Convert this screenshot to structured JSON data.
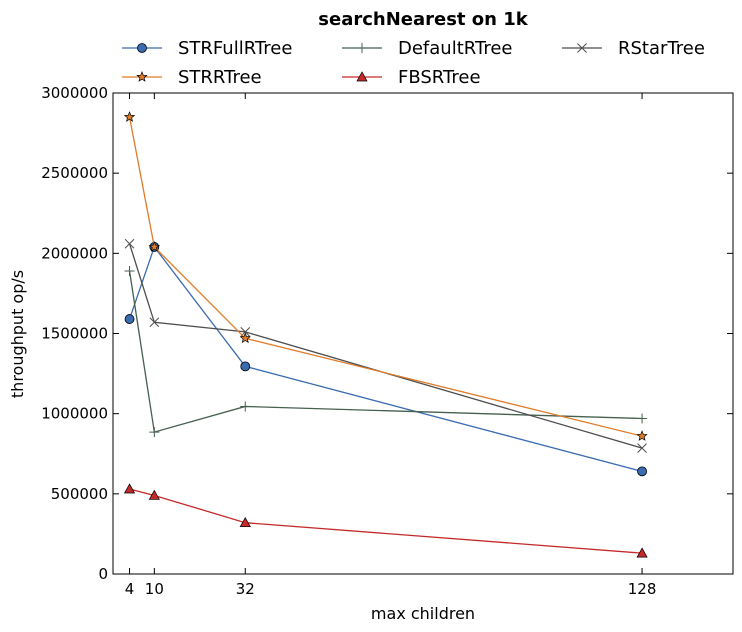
{
  "chart_data": {
    "type": "line",
    "title": "searchNearest on 1k",
    "xlabel": "max children",
    "ylabel": "throughput op/s",
    "xlim": [
      0,
      150
    ],
    "ylim": [
      0,
      3000000
    ],
    "xticks": [
      4,
      10,
      32,
      128
    ],
    "yticks": [
      0,
      500000,
      1000000,
      1500000,
      2000000,
      2500000,
      3000000
    ],
    "grid": false,
    "legend_position": "top",
    "x": [
      4,
      10,
      32,
      128
    ],
    "series": [
      {
        "name": "STRFullRTree",
        "values": [
          1590000,
          2040000,
          1295000,
          640000
        ],
        "color": "#3b6bb0",
        "marker": "circle"
      },
      {
        "name": "DefaultRTree",
        "values": [
          1890000,
          885000,
          1045000,
          970000
        ],
        "color": "#45604f",
        "marker": "plus"
      },
      {
        "name": "RStarTree",
        "values": [
          2060000,
          1570000,
          1510000,
          785000
        ],
        "color": "#4d4d4d",
        "marker": "x"
      },
      {
        "name": "STRRTree",
        "values": [
          2850000,
          2040000,
          1470000,
          860000
        ],
        "color": "#e07b28",
        "marker": "star"
      },
      {
        "name": "FBSRTree",
        "values": [
          530000,
          490000,
          320000,
          130000
        ],
        "color": "#c42a2a",
        "marker": "triangle"
      }
    ]
  }
}
